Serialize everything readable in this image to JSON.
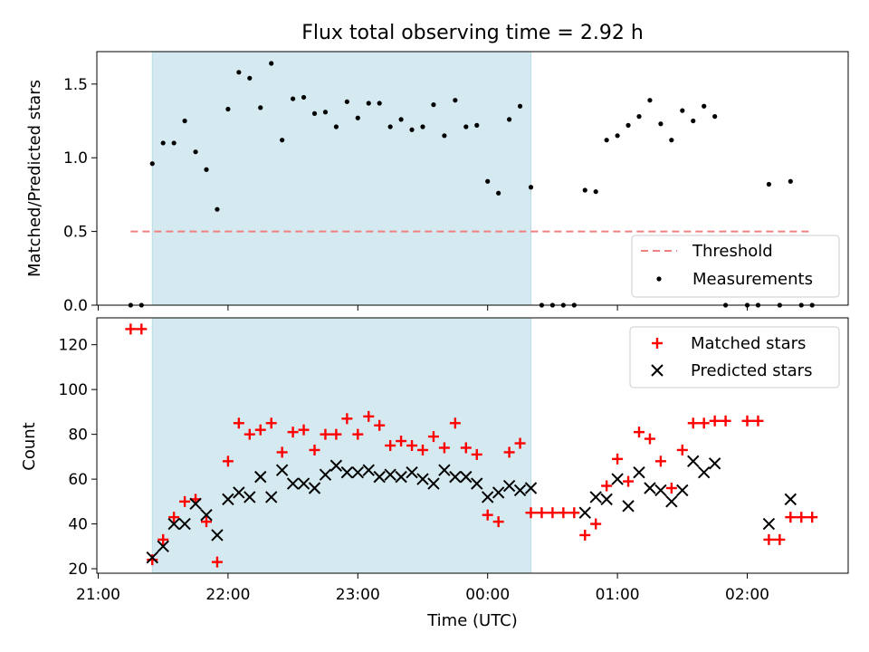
{
  "chart_data": [
    {
      "type": "scatter",
      "title": "Flux total observing time = 2.92 h",
      "ylabel": "Matched/Predicted stars",
      "xlabel": "",
      "xlim": [
        "21:00",
        "02:45"
      ],
      "ylim": [
        0,
        1.72
      ],
      "yticks": [
        "0.0",
        "0.5",
        "1.0",
        "1.5"
      ],
      "shaded_interval": [
        "21:25",
        "00:20"
      ],
      "legend_position": "lower right",
      "threshold": {
        "name": "Threshold",
        "value": 0.5,
        "x_range": [
          "21:15",
          "02:30"
        ],
        "color": "#f08080"
      },
      "series": [
        {
          "name": "Measurements",
          "color": "#000000",
          "points": [
            [
              "21:15",
              0.0
            ],
            [
              "21:20",
              0.0
            ],
            [
              "21:25",
              0.96
            ],
            [
              "21:30",
              1.1
            ],
            [
              "21:35",
              1.1
            ],
            [
              "21:40",
              1.25
            ],
            [
              "21:45",
              1.04
            ],
            [
              "21:50",
              0.92
            ],
            [
              "21:55",
              0.65
            ],
            [
              "22:00",
              1.33
            ],
            [
              "22:05",
              1.58
            ],
            [
              "22:10",
              1.54
            ],
            [
              "22:15",
              1.34
            ],
            [
              "22:20",
              1.64
            ],
            [
              "22:25",
              1.12
            ],
            [
              "22:30",
              1.4
            ],
            [
              "22:35",
              1.41
            ],
            [
              "22:40",
              1.3
            ],
            [
              "22:45",
              1.31
            ],
            [
              "22:50",
              1.21
            ],
            [
              "22:55",
              1.38
            ],
            [
              "23:00",
              1.27
            ],
            [
              "23:05",
              1.37
            ],
            [
              "23:10",
              1.37
            ],
            [
              "23:15",
              1.21
            ],
            [
              "23:20",
              1.26
            ],
            [
              "23:25",
              1.19
            ],
            [
              "23:30",
              1.21
            ],
            [
              "23:35",
              1.36
            ],
            [
              "23:40",
              1.15
            ],
            [
              "23:45",
              1.39
            ],
            [
              "23:50",
              1.21
            ],
            [
              "23:55",
              1.22
            ],
            [
              "00:00",
              0.84
            ],
            [
              "00:05",
              0.76
            ],
            [
              "00:10",
              1.26
            ],
            [
              "00:15",
              1.35
            ],
            [
              "00:20",
              0.8
            ],
            [
              "00:25",
              0.0
            ],
            [
              "00:30",
              0.0
            ],
            [
              "00:35",
              0.0
            ],
            [
              "00:40",
              0.0
            ],
            [
              "00:45",
              0.78
            ],
            [
              "00:50",
              0.77
            ],
            [
              "00:55",
              1.12
            ],
            [
              "01:00",
              1.15
            ],
            [
              "01:05",
              1.22
            ],
            [
              "01:10",
              1.28
            ],
            [
              "01:15",
              1.39
            ],
            [
              "01:20",
              1.23
            ],
            [
              "01:25",
              1.12
            ],
            [
              "01:30",
              1.32
            ],
            [
              "01:35",
              1.25
            ],
            [
              "01:40",
              1.35
            ],
            [
              "01:45",
              1.28
            ],
            [
              "01:50",
              0.0
            ],
            [
              "02:00",
              0.0
            ],
            [
              "02:05",
              0.0
            ],
            [
              "02:10",
              0.82
            ],
            [
              "02:15",
              0.0
            ],
            [
              "02:20",
              0.84
            ],
            [
              "02:25",
              0.0
            ],
            [
              "02:30",
              0.0
            ]
          ]
        }
      ]
    },
    {
      "type": "scatter",
      "title": "",
      "xlabel": "Time (UTC)",
      "ylabel": "Count",
      "xlim": [
        "21:00",
        "02:45"
      ],
      "ylim": [
        18,
        132
      ],
      "xticks": [
        "21:00",
        "22:00",
        "23:00",
        "00:00",
        "01:00",
        "02:00"
      ],
      "yticks": [
        "20",
        "40",
        "60",
        "80",
        "100",
        "120"
      ],
      "shaded_interval": [
        "21:25",
        "00:20"
      ],
      "legend_position": "upper right",
      "series": [
        {
          "name": "Matched stars",
          "marker": "+",
          "color": "#ff0000",
          "points": [
            [
              "21:15",
              127
            ],
            [
              "21:20",
              127
            ],
            [
              "21:25",
              24
            ],
            [
              "21:30",
              33
            ],
            [
              "21:35",
              43
            ],
            [
              "21:40",
              50
            ],
            [
              "21:45",
              51
            ],
            [
              "21:50",
              41
            ],
            [
              "21:55",
              23
            ],
            [
              "22:00",
              68
            ],
            [
              "22:05",
              85
            ],
            [
              "22:10",
              80
            ],
            [
              "22:15",
              82
            ],
            [
              "22:20",
              85
            ],
            [
              "22:25",
              72
            ],
            [
              "22:30",
              81
            ],
            [
              "22:35",
              82
            ],
            [
              "22:40",
              73
            ],
            [
              "22:45",
              80
            ],
            [
              "22:50",
              80
            ],
            [
              "22:55",
              87
            ],
            [
              "23:00",
              80
            ],
            [
              "23:05",
              88
            ],
            [
              "23:10",
              84
            ],
            [
              "23:15",
              75
            ],
            [
              "23:20",
              77
            ],
            [
              "23:25",
              75
            ],
            [
              "23:30",
              73
            ],
            [
              "23:35",
              79
            ],
            [
              "23:40",
              74
            ],
            [
              "23:45",
              85
            ],
            [
              "23:50",
              74
            ],
            [
              "23:55",
              71
            ],
            [
              "00:00",
              44
            ],
            [
              "00:05",
              41
            ],
            [
              "00:10",
              72
            ],
            [
              "00:15",
              76
            ],
            [
              "00:20",
              45
            ],
            [
              "00:25",
              45
            ],
            [
              "00:30",
              45
            ],
            [
              "00:35",
              45
            ],
            [
              "00:40",
              45
            ],
            [
              "00:45",
              35
            ],
            [
              "00:50",
              40
            ],
            [
              "00:55",
              57
            ],
            [
              "01:00",
              69
            ],
            [
              "01:05",
              59
            ],
            [
              "01:10",
              81
            ],
            [
              "01:15",
              78
            ],
            [
              "01:20",
              68
            ],
            [
              "01:25",
              56
            ],
            [
              "01:30",
              73
            ],
            [
              "01:35",
              85
            ],
            [
              "01:40",
              85
            ],
            [
              "01:45",
              86
            ],
            [
              "01:50",
              86
            ],
            [
              "02:00",
              86
            ],
            [
              "02:05",
              86
            ],
            [
              "02:10",
              33
            ],
            [
              "02:15",
              33
            ],
            [
              "02:20",
              43
            ],
            [
              "02:25",
              43
            ],
            [
              "02:30",
              43
            ]
          ]
        },
        {
          "name": "Predicted stars",
          "marker": "x",
          "color": "#000000",
          "points": [
            [
              "21:25",
              25
            ],
            [
              "21:30",
              30
            ],
            [
              "21:35",
              40
            ],
            [
              "21:40",
              40
            ],
            [
              "21:45",
              49
            ],
            [
              "21:50",
              44
            ],
            [
              "21:55",
              35
            ],
            [
              "22:00",
              51
            ],
            [
              "22:05",
              54
            ],
            [
              "22:10",
              52
            ],
            [
              "22:15",
              61
            ],
            [
              "22:20",
              52
            ],
            [
              "22:25",
              64
            ],
            [
              "22:30",
              58
            ],
            [
              "22:35",
              58
            ],
            [
              "22:40",
              56
            ],
            [
              "22:45",
              62
            ],
            [
              "22:50",
              66
            ],
            [
              "22:55",
              63
            ],
            [
              "23:00",
              63
            ],
            [
              "23:05",
              64
            ],
            [
              "23:10",
              61
            ],
            [
              "23:15",
              62
            ],
            [
              "23:20",
              61
            ],
            [
              "23:25",
              63
            ],
            [
              "23:30",
              60
            ],
            [
              "23:35",
              58
            ],
            [
              "23:40",
              64
            ],
            [
              "23:45",
              61
            ],
            [
              "23:50",
              61
            ],
            [
              "23:55",
              58
            ],
            [
              "00:00",
              52
            ],
            [
              "00:05",
              54
            ],
            [
              "00:10",
              57
            ],
            [
              "00:15",
              55
            ],
            [
              "00:20",
              56
            ],
            [
              "00:45",
              45
            ],
            [
              "00:50",
              52
            ],
            [
              "00:55",
              51
            ],
            [
              "01:00",
              60
            ],
            [
              "01:05",
              48
            ],
            [
              "01:10",
              63
            ],
            [
              "01:15",
              56
            ],
            [
              "01:20",
              55
            ],
            [
              "01:25",
              50
            ],
            [
              "01:30",
              55
            ],
            [
              "01:35",
              68
            ],
            [
              "01:40",
              63
            ],
            [
              "01:45",
              67
            ],
            [
              "02:10",
              40
            ],
            [
              "02:20",
              51
            ]
          ]
        }
      ]
    }
  ],
  "colors": {
    "shade": "#d4eaf0",
    "shade_edge": "#b8dce6",
    "axes": "#000000"
  }
}
